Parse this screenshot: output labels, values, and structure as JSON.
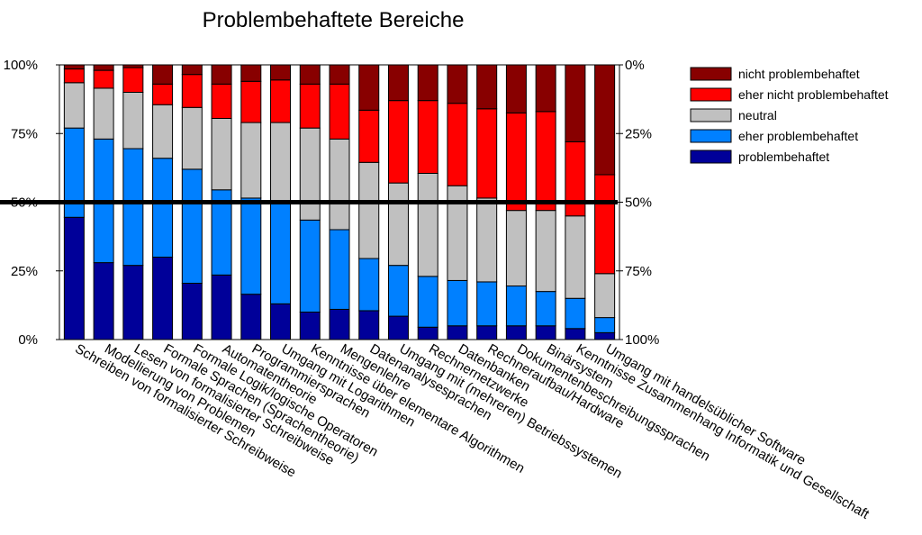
{
  "chart_data": {
    "type": "bar",
    "stacked": true,
    "title": "Problembehaftete Bereiche",
    "xlabel": "",
    "ylabel": "",
    "ylim": [
      0,
      100
    ],
    "y_ticks_left": [
      "0%",
      "25%",
      "50%",
      "75%",
      "100%"
    ],
    "y_ticks_right": [
      "100%",
      "75%",
      "50%",
      "25%",
      "0%"
    ],
    "reference_line": 50,
    "legend_position": "top-right",
    "categories": [
      "Schreiben von formalisierter Schreibweise",
      "Modellierung von Problemen",
      "Lesen von formalisierter Schreibweise",
      "Formale Sprachen (Sprachentheorie)",
      "Formale Logik/logische Operatoren",
      "Automatentheorie",
      "Programmiersprachen",
      "Umgang mit Logarithmen",
      "Kenntnisse über elementare Algorithmen",
      "Mengenlehre",
      "Datenanalysesprachen",
      "Umgang mit (mehreren) Betriebssystemen",
      "Rechnernetzwerke",
      "Datenbanken",
      "Rechneraufbau/Hardware",
      "Dokumentenbeschreibungssprachen",
      "Binärsystem",
      "Kenntnisse Zusammenhang Informatik und Gesellschaft",
      "Umgang mit handelsüblicher Software"
    ],
    "series": [
      {
        "name": "problembehaftet",
        "color": "#000099",
        "values": [
          44.5,
          28,
          27,
          30,
          20.5,
          23.5,
          16.5,
          13,
          10,
          11,
          10.5,
          8.5,
          4.5,
          5,
          5,
          5,
          5,
          4,
          2.5
        ]
      },
      {
        "name": "eher problembehaftet",
        "color": "#0080ff",
        "values": [
          32.5,
          45,
          42.5,
          36,
          41.5,
          31,
          35,
          37.5,
          33.5,
          29,
          19,
          18.5,
          18.5,
          16.5,
          16,
          14.5,
          12.5,
          11,
          5.5
        ]
      },
      {
        "name": "neutral",
        "color": "#c0c0c0",
        "values": [
          16.5,
          18.5,
          20.5,
          19.5,
          22.5,
          26,
          27.5,
          28.5,
          33.5,
          33,
          35,
          30,
          37.5,
          34.5,
          30.5,
          27.5,
          29.5,
          30,
          16
        ]
      },
      {
        "name": "eher nicht problembehaftet",
        "color": "#ff0000",
        "values": [
          5,
          6.5,
          9,
          7.5,
          12,
          12.5,
          15,
          15.5,
          16,
          20,
          19,
          30,
          26.5,
          30,
          32.5,
          35.5,
          36,
          27,
          36
        ]
      },
      {
        "name": "nicht problembehaftet",
        "color": "#880000",
        "values": [
          1.5,
          2,
          1,
          7,
          3.5,
          7,
          6,
          5.5,
          7,
          7,
          16.5,
          13,
          13,
          14,
          16,
          17.5,
          17,
          28,
          40
        ]
      }
    ],
    "legend_order": [
      "nicht problembehaftet",
      "eher nicht problembehaftet",
      "neutral",
      "eher problembehaftet",
      "problembehaftet"
    ]
  }
}
